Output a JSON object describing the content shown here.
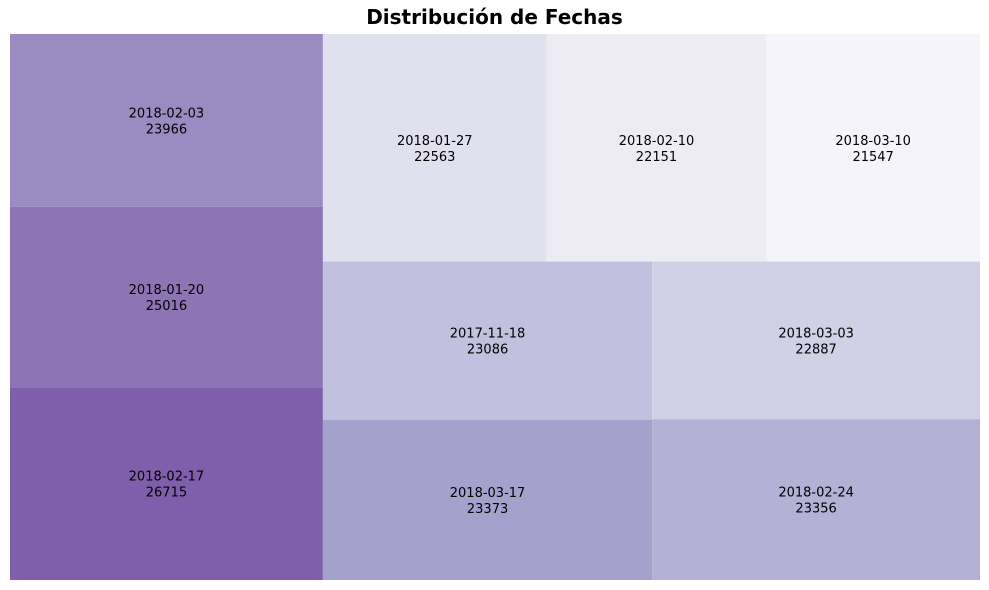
{
  "chart_data": {
    "type": "treemap",
    "title": "Distribución de Fechas",
    "items": [
      {
        "label": "2018-02-03",
        "value": 23966,
        "color": "#9a8bc2"
      },
      {
        "label": "2018-01-20",
        "value": 25016,
        "color": "#8d75b5"
      },
      {
        "label": "2018-02-17",
        "value": 26715,
        "color": "#7f5fab"
      },
      {
        "label": "2018-01-27",
        "value": 22563,
        "color": "#e1e0ee"
      },
      {
        "label": "2018-02-10",
        "value": 22151,
        "color": "#edebf4"
      },
      {
        "label": "2018-03-10",
        "value": 21547,
        "color": "#f5f4fa"
      },
      {
        "label": "2017-11-18",
        "value": 23086,
        "color": "#c1c0de"
      },
      {
        "label": "2018-03-03",
        "value": 22887,
        "color": "#d0d0e6"
      },
      {
        "label": "2018-03-17",
        "value": 23373,
        "color": "#a4a2cc"
      },
      {
        "label": "2018-02-24",
        "value": 23356,
        "color": "#b3b1d5"
      }
    ]
  }
}
